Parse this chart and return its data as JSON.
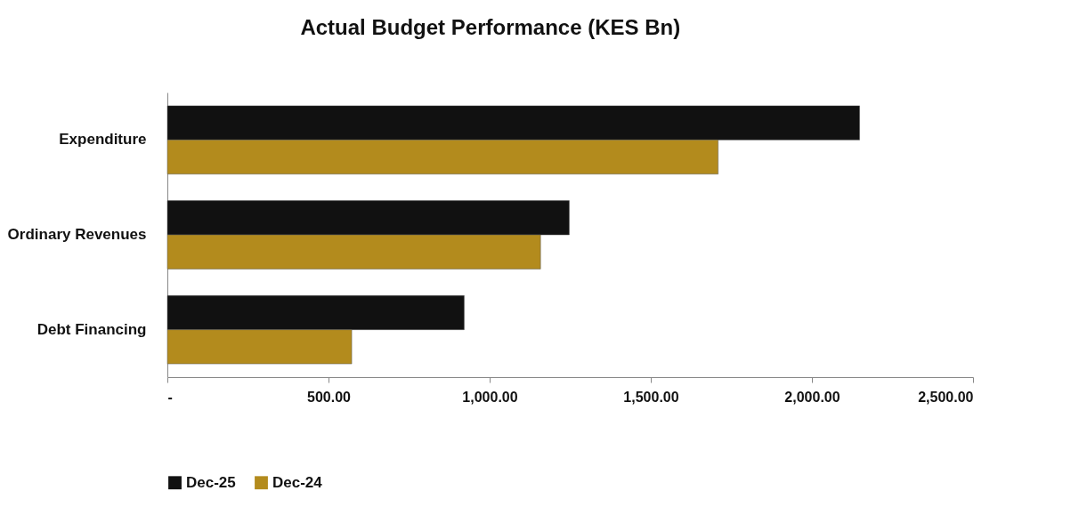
{
  "chart_data": {
    "type": "bar",
    "orientation": "horizontal",
    "title": "Actual Budget Performance (KES Bn)",
    "categories": [
      "Expenditure",
      "Ordinary Revenues",
      "Debt Financing"
    ],
    "series": [
      {
        "name": "Dec-25",
        "color": "#111111",
        "values": [
          2148,
          1247,
          921
        ]
      },
      {
        "name": "Dec-24",
        "color": "#b38b1d",
        "values": [
          1709,
          1158,
          572
        ]
      }
    ],
    "xlim": [
      0,
      2500
    ],
    "xticks": [
      {
        "value": 0,
        "label": "-"
      },
      {
        "value": 500,
        "label": "500.00"
      },
      {
        "value": 1000,
        "label": "1,000.00"
      },
      {
        "value": 1500,
        "label": "1,500.00"
      },
      {
        "value": 2000,
        "label": "2,000.00"
      },
      {
        "value": 2500,
        "label": "2,500.00"
      }
    ],
    "grid": false,
    "legend": "bottom"
  }
}
